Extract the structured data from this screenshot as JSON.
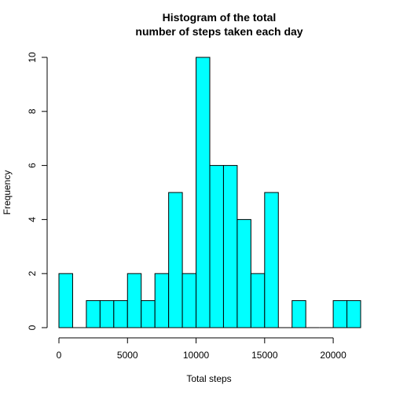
{
  "colors": {
    "bar_fill": "#00FFFF",
    "bar_stroke": "#000000",
    "background": "#FFFFFF",
    "axis": "#000000"
  },
  "chart_data": {
    "type": "bar",
    "title_lines": [
      "Histogram of the total",
      "number of steps taken each day"
    ],
    "xlabel": "Total steps",
    "ylabel": "Frequency",
    "bin_width": 1000,
    "bins": [
      {
        "start": 0,
        "end": 1000,
        "count": 2
      },
      {
        "start": 1000,
        "end": 2000,
        "count": 0
      },
      {
        "start": 2000,
        "end": 3000,
        "count": 1
      },
      {
        "start": 3000,
        "end": 4000,
        "count": 1
      },
      {
        "start": 4000,
        "end": 5000,
        "count": 1
      },
      {
        "start": 5000,
        "end": 6000,
        "count": 2
      },
      {
        "start": 6000,
        "end": 7000,
        "count": 1
      },
      {
        "start": 7000,
        "end": 8000,
        "count": 2
      },
      {
        "start": 8000,
        "end": 9000,
        "count": 5
      },
      {
        "start": 9000,
        "end": 10000,
        "count": 2
      },
      {
        "start": 10000,
        "end": 11000,
        "count": 10
      },
      {
        "start": 11000,
        "end": 12000,
        "count": 6
      },
      {
        "start": 12000,
        "end": 13000,
        "count": 6
      },
      {
        "start": 13000,
        "end": 14000,
        "count": 4
      },
      {
        "start": 14000,
        "end": 15000,
        "count": 2
      },
      {
        "start": 15000,
        "end": 16000,
        "count": 5
      },
      {
        "start": 16000,
        "end": 17000,
        "count": 0
      },
      {
        "start": 17000,
        "end": 18000,
        "count": 1
      },
      {
        "start": 18000,
        "end": 19000,
        "count": 0
      },
      {
        "start": 19000,
        "end": 20000,
        "count": 0
      },
      {
        "start": 20000,
        "end": 21000,
        "count": 1
      },
      {
        "start": 21000,
        "end": 22000,
        "count": 1
      }
    ],
    "xlim": [
      0,
      22000
    ],
    "ylim": [
      0,
      10
    ],
    "x_ticks": [
      0,
      5000,
      10000,
      15000,
      20000
    ],
    "x_tick_labels": [
      "0",
      "5000",
      "10000",
      "15000",
      "20000"
    ],
    "y_ticks": [
      0,
      2,
      4,
      6,
      8,
      10
    ],
    "y_tick_labels": [
      "0",
      "2",
      "4",
      "6",
      "8",
      "10"
    ],
    "grid": false,
    "legend": "none"
  }
}
